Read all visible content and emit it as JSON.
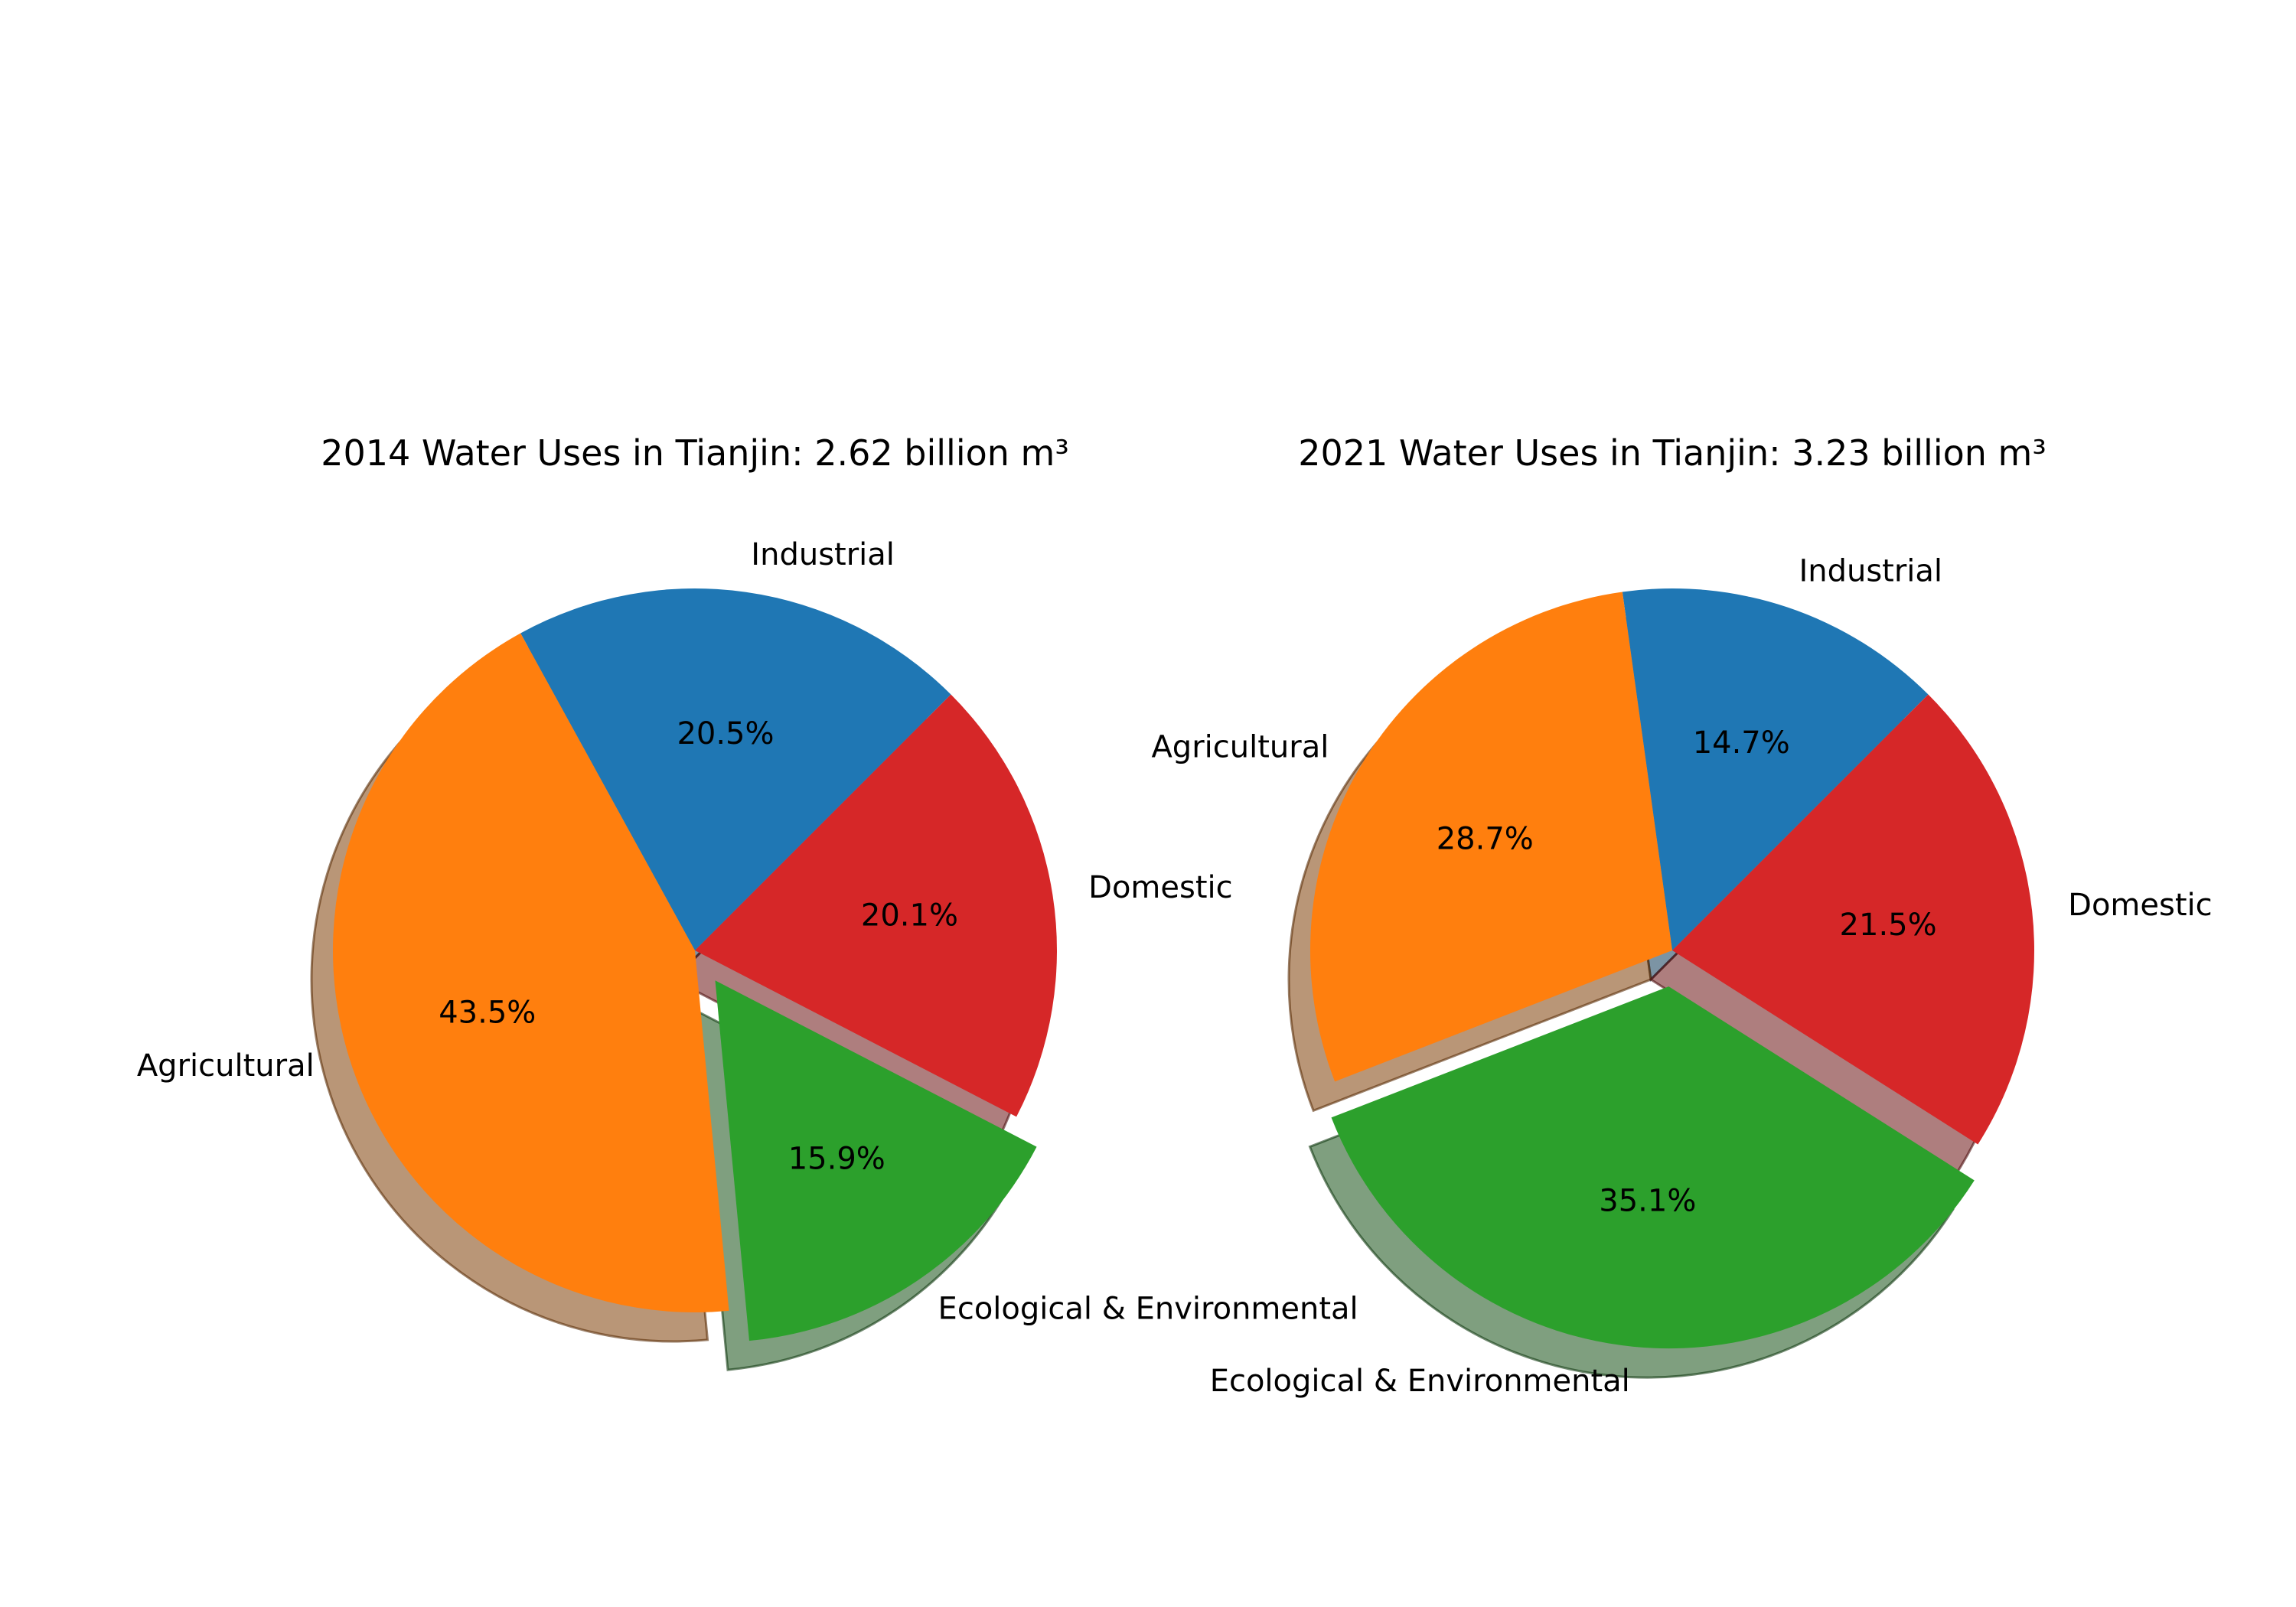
{
  "chart_data": [
    {
      "type": "pie",
      "title": "2014 Water Uses in Tianjin: 2.62 billion m³",
      "categories": [
        "Industrial",
        "Agricultural",
        "Ecological & Environmental",
        "Domestic"
      ],
      "values": [
        20.5,
        43.5,
        15.9,
        20.1
      ],
      "value_labels": [
        "20.5%",
        "43.5%",
        "15.9%",
        "20.1%"
      ],
      "colors": [
        "#1f77b4",
        "#ff7f0e",
        "#2ca02c",
        "#d62728"
      ],
      "start_angle_deg": 45,
      "exploded": [
        "Ecological & Environmental"
      ],
      "shadow": true
    },
    {
      "type": "pie",
      "title": "2021 Water Uses in Tianjin: 3.23 billion m³",
      "categories": [
        "Industrial",
        "Agricultural",
        "Ecological & Environmental",
        "Domestic"
      ],
      "values": [
        14.7,
        28.7,
        35.1,
        21.5
      ],
      "value_labels": [
        "14.7%",
        "28.7%",
        "35.1%",
        "21.5%"
      ],
      "colors": [
        "#1f77b4",
        "#ff7f0e",
        "#2ca02c",
        "#d62728"
      ],
      "start_angle_deg": 45,
      "exploded": [
        "Ecological & Environmental"
      ],
      "shadow": true
    }
  ]
}
